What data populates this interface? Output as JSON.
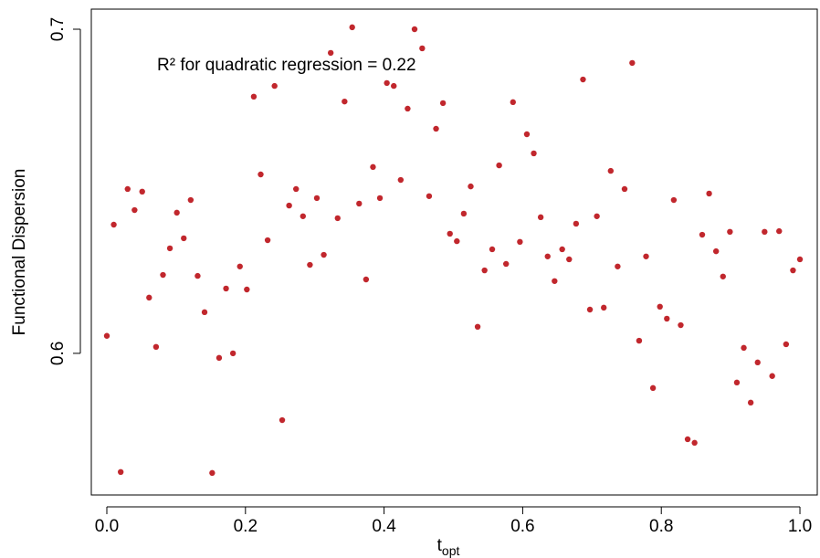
{
  "chart_data": {
    "type": "scatter",
    "xlabel": {
      "text": "t",
      "subscript": "opt"
    },
    "ylabel": "Functional Dispersion",
    "annotation": "R² for quadratic regression = 0.22",
    "color": "#c1272d",
    "grid": false,
    "xlim": [
      -0.0224,
      1.025
    ],
    "ylim": [
      0.5563,
      0.7062
    ],
    "xticks": [
      {
        "value": 0,
        "label": "0.0"
      },
      0.2,
      0.4,
      0.6,
      0.8,
      {
        "value": 1,
        "label": "1.0"
      }
    ],
    "yticks": [
      0.6,
      0.7
    ],
    "x": [
      0,
      0.01,
      0.02,
      0.03,
      0.04,
      0.051,
      0.061,
      0.071,
      0.081,
      0.091,
      0.101,
      0.111,
      0.121,
      0.131,
      0.141,
      0.152,
      0.162,
      0.172,
      0.182,
      0.192,
      0.202,
      0.212,
      0.222,
      0.232,
      0.242,
      0.253,
      0.263,
      0.273,
      0.283,
      0.293,
      0.303,
      0.313,
      0.323,
      0.333,
      0.343,
      0.354,
      0.364,
      0.374,
      0.384,
      0.394,
      0.404,
      0.414,
      0.424,
      0.434,
      0.444,
      0.455,
      0.465,
      0.475,
      0.485,
      0.495,
      0.505,
      0.515,
      0.525,
      0.535,
      0.545,
      0.556,
      0.566,
      0.576,
      0.586,
      0.596,
      0.606,
      0.616,
      0.626,
      0.636,
      0.646,
      0.657,
      0.667,
      0.677,
      0.687,
      0.697,
      0.707,
      0.717,
      0.727,
      0.737,
      0.747,
      0.758,
      0.768,
      0.778,
      0.788,
      0.798,
      0.808,
      0.818,
      0.828,
      0.838,
      0.848,
      0.859,
      0.869,
      0.879,
      0.889,
      0.899,
      0.909,
      0.919,
      0.929,
      0.939,
      0.949,
      0.96,
      0.97,
      0.98,
      0.99,
      1.0
    ],
    "values": [
      0.6054,
      0.6397,
      0.5634,
      0.6507,
      0.6442,
      0.6499,
      0.6172,
      0.602,
      0.6242,
      0.6324,
      0.6434,
      0.6355,
      0.6473,
      0.6239,
      0.6127,
      0.5631,
      0.5986,
      0.62,
      0.6,
      0.6268,
      0.6197,
      0.6792,
      0.6552,
      0.6349,
      0.6825,
      0.5794,
      0.6456,
      0.6507,
      0.6423,
      0.6273,
      0.6479,
      0.6304,
      0.6927,
      0.6417,
      0.6777,
      0.7006,
      0.6462,
      0.6228,
      0.6575,
      0.6479,
      0.6834,
      0.6825,
      0.6535,
      0.6755,
      0.7,
      0.6941,
      0.6485,
      0.6693,
      0.6772,
      0.6369,
      0.6346,
      0.6431,
      0.6515,
      0.6082,
      0.6256,
      0.6321,
      0.658,
      0.6276,
      0.6775,
      0.6344,
      0.6676,
      0.6617,
      0.642,
      0.6299,
      0.6223,
      0.6321,
      0.629,
      0.64,
      0.6845,
      0.6135,
      0.6423,
      0.6141,
      0.6563,
      0.6268,
      0.6507,
      0.6896,
      0.6039,
      0.6299,
      0.5893,
      0.6144,
      0.6107,
      0.6473,
      0.6087,
      0.5735,
      0.5724,
      0.6366,
      0.6493,
      0.6315,
      0.6237,
      0.6375,
      0.591,
      0.6017,
      0.5848,
      0.5972,
      0.6375,
      0.593,
      0.6377,
      0.6028,
      0.6256,
      0.629
    ]
  }
}
